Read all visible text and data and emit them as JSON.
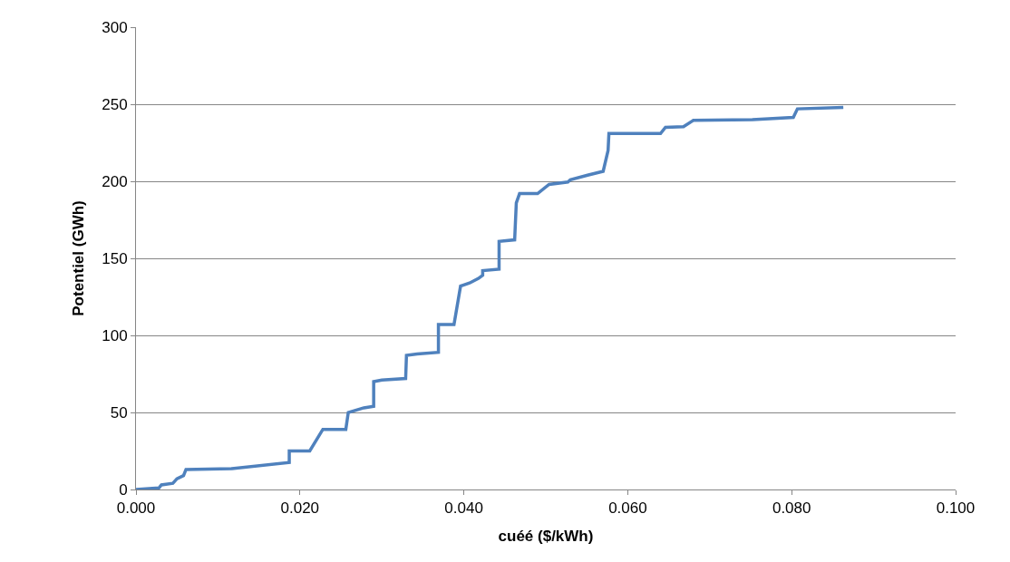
{
  "chart_data": {
    "type": "line",
    "xlabel": "cuéé ($/kWh)",
    "ylabel": "Potentiel (GWh)",
    "series": [
      {
        "color": "#4f81bd",
        "x": [
          0,
          0.0028,
          0.0031,
          0.0045,
          0.005,
          0.0058,
          0.0061,
          0.0117,
          0.0187,
          0.0187,
          0.0212,
          0.0228,
          0.0256,
          0.0259,
          0.0278,
          0.029,
          0.029,
          0.03,
          0.0329,
          0.033,
          0.0343,
          0.0369,
          0.0369,
          0.0388,
          0.0396,
          0.0407,
          0.0418,
          0.0423,
          0.0423,
          0.0443,
          0.0443,
          0.0462,
          0.0464,
          0.0468,
          0.049,
          0.0504,
          0.0527,
          0.053,
          0.0551,
          0.057,
          0.0576,
          0.0577,
          0.064,
          0.0646,
          0.0668,
          0.068,
          0.0752,
          0.0802,
          0.0807,
          0.0863
        ],
        "values": [
          0,
          1,
          3,
          4,
          7,
          9,
          13,
          13.5,
          17.5,
          25,
          25,
          39,
          39,
          50,
          53,
          54,
          70,
          71,
          72,
          87,
          88,
          89,
          107,
          107,
          132,
          134,
          137,
          139,
          142,
          143,
          161,
          162,
          186,
          192,
          192,
          198,
          199.5,
          201,
          204,
          206.5,
          220,
          231,
          231,
          235,
          235.5,
          239.5,
          240,
          241.5,
          247,
          248
        ]
      }
    ],
    "xlim": [
      0,
      0.1
    ],
    "xticks": [
      {
        "value": 0,
        "label": "0.000"
      },
      {
        "value": 0.02,
        "label": "0.020"
      },
      {
        "value": 0.04,
        "label": "0.040"
      },
      {
        "value": 0.06,
        "label": "0.060"
      },
      {
        "value": 0.08,
        "label": "0.080"
      },
      {
        "value": 0.1,
        "label": "0.100"
      }
    ],
    "ylim": [
      0,
      300
    ],
    "yticks": [
      0,
      50,
      100,
      150,
      200,
      250,
      300
    ],
    "grid": "y",
    "marker": "none",
    "line_style": "solid",
    "legend": false
  }
}
